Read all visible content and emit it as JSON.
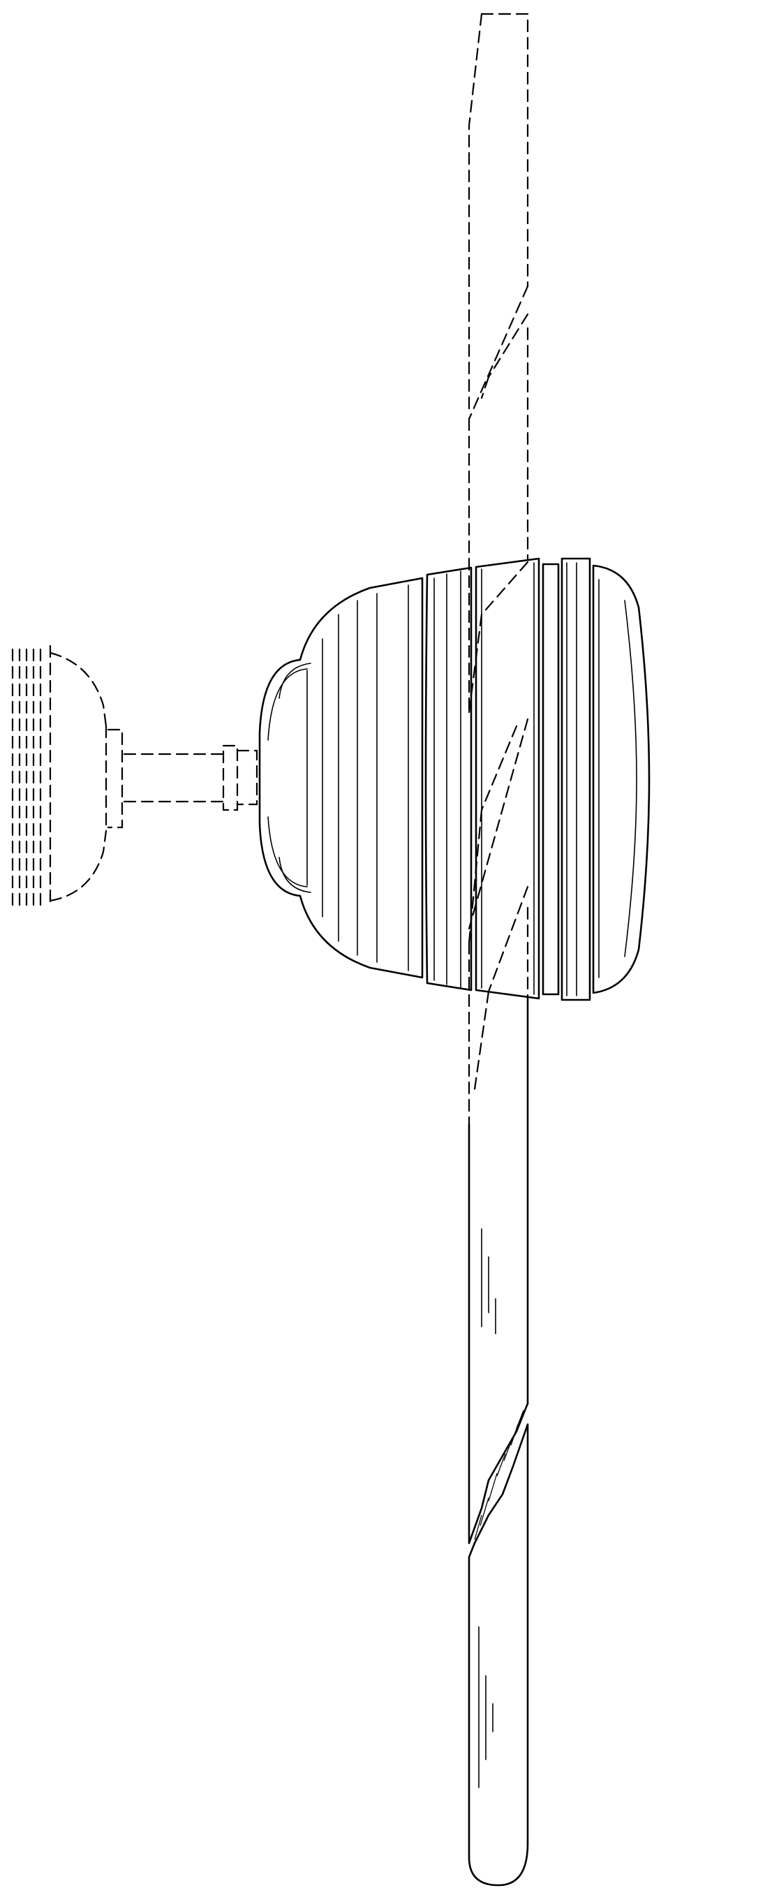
{
  "figure": {
    "subject": "ceiling-fan-side-elevation",
    "style": "patent-line-drawing",
    "colors": {
      "line": "#000000",
      "background": "#ffffff"
    }
  }
}
